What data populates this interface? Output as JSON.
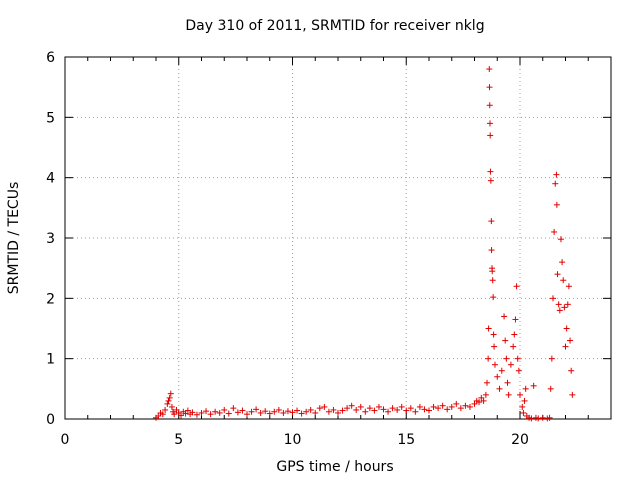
{
  "chart_data": {
    "type": "scatter",
    "title": "Day 310 of 2011, SRMTID for receiver nklg",
    "xlabel": "GPS time / hours",
    "ylabel": "SRMTID / TECUs",
    "xlim": [
      0,
      24
    ],
    "ylim": [
      0,
      6
    ],
    "xticks": [
      0,
      5,
      10,
      15,
      20
    ],
    "yticks": [
      0,
      1,
      2,
      3,
      4,
      5,
      6
    ],
    "grid": true,
    "marker": "plus",
    "color": "#e00000",
    "series": [
      {
        "name": "SRMTID",
        "points": [
          [
            4.0,
            0.02
          ],
          [
            4.1,
            0.05
          ],
          [
            4.2,
            0.1
          ],
          [
            4.3,
            0.08
          ],
          [
            4.4,
            0.15
          ],
          [
            4.5,
            0.25
          ],
          [
            4.55,
            0.3
          ],
          [
            4.6,
            0.35
          ],
          [
            4.65,
            0.42
          ],
          [
            4.7,
            0.2
          ],
          [
            4.75,
            0.12
          ],
          [
            4.8,
            0.08
          ],
          [
            4.9,
            0.15
          ],
          [
            5.0,
            0.1
          ],
          [
            5.1,
            0.06
          ],
          [
            5.2,
            0.12
          ],
          [
            5.3,
            0.09
          ],
          [
            5.4,
            0.14
          ],
          [
            5.5,
            0.08
          ],
          [
            5.6,
            0.11
          ],
          [
            5.8,
            0.07
          ],
          [
            6.0,
            0.1
          ],
          [
            6.2,
            0.13
          ],
          [
            6.4,
            0.08
          ],
          [
            6.6,
            0.12
          ],
          [
            6.8,
            0.1
          ],
          [
            7.0,
            0.15
          ],
          [
            7.2,
            0.09
          ],
          [
            7.4,
            0.18
          ],
          [
            7.6,
            0.11
          ],
          [
            7.8,
            0.14
          ],
          [
            8.0,
            0.08
          ],
          [
            8.2,
            0.12
          ],
          [
            8.4,
            0.16
          ],
          [
            8.6,
            0.1
          ],
          [
            8.8,
            0.13
          ],
          [
            9.0,
            0.09
          ],
          [
            9.2,
            0.12
          ],
          [
            9.4,
            0.15
          ],
          [
            9.6,
            0.1
          ],
          [
            9.8,
            0.13
          ],
          [
            10.0,
            0.11
          ],
          [
            10.2,
            0.14
          ],
          [
            10.4,
            0.09
          ],
          [
            10.6,
            0.12
          ],
          [
            10.8,
            0.15
          ],
          [
            11.0,
            0.1
          ],
          [
            11.2,
            0.18
          ],
          [
            11.4,
            0.2
          ],
          [
            11.6,
            0.12
          ],
          [
            11.8,
            0.15
          ],
          [
            12.0,
            0.1
          ],
          [
            12.2,
            0.14
          ],
          [
            12.4,
            0.18
          ],
          [
            12.6,
            0.22
          ],
          [
            12.8,
            0.15
          ],
          [
            13.0,
            0.2
          ],
          [
            13.2,
            0.12
          ],
          [
            13.4,
            0.18
          ],
          [
            13.6,
            0.14
          ],
          [
            13.8,
            0.2
          ],
          [
            14.0,
            0.16
          ],
          [
            14.2,
            0.12
          ],
          [
            14.4,
            0.18
          ],
          [
            14.6,
            0.15
          ],
          [
            14.8,
            0.2
          ],
          [
            15.0,
            0.14
          ],
          [
            15.2,
            0.18
          ],
          [
            15.4,
            0.12
          ],
          [
            15.6,
            0.2
          ],
          [
            15.8,
            0.16
          ],
          [
            16.0,
            0.14
          ],
          [
            16.2,
            0.2
          ],
          [
            16.4,
            0.18
          ],
          [
            16.6,
            0.22
          ],
          [
            16.8,
            0.16
          ],
          [
            17.0,
            0.2
          ],
          [
            17.2,
            0.25
          ],
          [
            17.4,
            0.18
          ],
          [
            17.6,
            0.22
          ],
          [
            17.8,
            0.2
          ],
          [
            18.0,
            0.25
          ],
          [
            18.1,
            0.3
          ],
          [
            18.2,
            0.28
          ],
          [
            18.3,
            0.35
          ],
          [
            18.4,
            0.3
          ],
          [
            18.5,
            0.4
          ],
          [
            18.55,
            0.6
          ],
          [
            18.6,
            1.0
          ],
          [
            18.62,
            1.5
          ],
          [
            18.65,
            5.8
          ],
          [
            18.66,
            5.5
          ],
          [
            18.67,
            5.2
          ],
          [
            18.68,
            4.9
          ],
          [
            18.69,
            4.7
          ],
          [
            18.7,
            4.1
          ],
          [
            18.72,
            3.95
          ],
          [
            18.74,
            3.28
          ],
          [
            18.75,
            2.8
          ],
          [
            18.77,
            2.5
          ],
          [
            18.78,
            2.45
          ],
          [
            18.8,
            2.3
          ],
          [
            18.82,
            2.02
          ],
          [
            18.84,
            1.4
          ],
          [
            18.86,
            1.2
          ],
          [
            18.9,
            0.9
          ],
          [
            19.0,
            0.7
          ],
          [
            19.1,
            0.5
          ],
          [
            19.2,
            0.8
          ],
          [
            19.3,
            1.7
          ],
          [
            19.35,
            1.3
          ],
          [
            19.4,
            1.0
          ],
          [
            19.45,
            0.6
          ],
          [
            19.5,
            0.4
          ],
          [
            19.6,
            0.9
          ],
          [
            19.7,
            1.2
          ],
          [
            19.75,
            1.4
          ],
          [
            19.8,
            1.65
          ],
          [
            19.85,
            2.2
          ],
          [
            19.9,
            1.0
          ],
          [
            19.95,
            0.8
          ],
          [
            20.0,
            0.4
          ],
          [
            20.1,
            0.2
          ],
          [
            20.15,
            0.1
          ],
          [
            20.2,
            0.3
          ],
          [
            20.25,
            0.5
          ],
          [
            20.3,
            0.05
          ],
          [
            20.4,
            0.02
          ],
          [
            20.5,
            0.01
          ],
          [
            20.6,
            0.55
          ],
          [
            20.7,
            0.02
          ],
          [
            20.8,
            0.01
          ],
          [
            21.0,
            0.02
          ],
          [
            21.2,
            0.01
          ],
          [
            21.3,
            0.02
          ],
          [
            21.35,
            0.5
          ],
          [
            21.4,
            1.0
          ],
          [
            21.45,
            2.0
          ],
          [
            21.5,
            3.1
          ],
          [
            21.55,
            3.9
          ],
          [
            21.6,
            4.05
          ],
          [
            21.62,
            3.55
          ],
          [
            21.65,
            2.4
          ],
          [
            21.7,
            1.9
          ],
          [
            21.75,
            1.8
          ],
          [
            21.8,
            2.98
          ],
          [
            21.85,
            2.6
          ],
          [
            21.9,
            2.3
          ],
          [
            21.95,
            1.85
          ],
          [
            22.0,
            1.2
          ],
          [
            22.05,
            1.5
          ],
          [
            22.1,
            1.9
          ],
          [
            22.15,
            2.2
          ],
          [
            22.2,
            1.3
          ],
          [
            22.25,
            0.8
          ],
          [
            22.3,
            0.4
          ]
        ]
      }
    ]
  }
}
